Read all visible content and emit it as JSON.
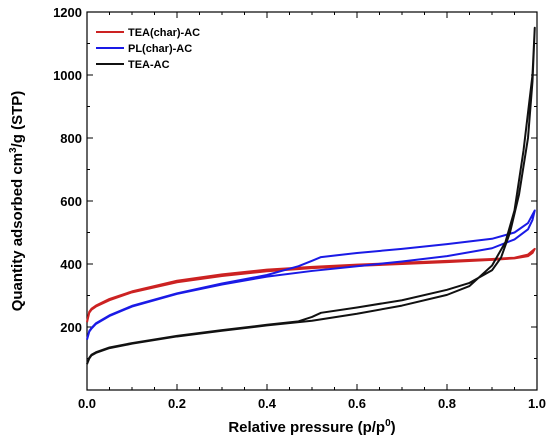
{
  "chart_data": {
    "type": "line",
    "xlabel": "Relative pressure (p/p",
    "xlabel_sup": "0",
    "xlabel_end": ")",
    "ylabel": "Quantity adsorbed cm",
    "ylabel_sup": "3",
    "ylabel_end": "/g (STP)",
    "xlim": [
      0.0,
      1.0
    ],
    "ylim": [
      0,
      1200
    ],
    "xticks": [
      "0.0",
      "0.2",
      "0.4",
      "0.6",
      "0.8",
      "1.0"
    ],
    "yticks": [
      "200",
      "400",
      "600",
      "800",
      "1000",
      "1200"
    ],
    "legend_position": "top-left",
    "series": [
      {
        "name": "TEA(char)-AC",
        "color": "#cc2222",
        "loop": true,
        "adsorption": [
          [
            0.0,
            215
          ],
          [
            0.005,
            245
          ],
          [
            0.01,
            255
          ],
          [
            0.02,
            265
          ],
          [
            0.05,
            285
          ],
          [
            0.1,
            310
          ],
          [
            0.2,
            342
          ],
          [
            0.3,
            362
          ],
          [
            0.4,
            377
          ],
          [
            0.5,
            387
          ],
          [
            0.6,
            394
          ],
          [
            0.7,
            400
          ],
          [
            0.8,
            406
          ],
          [
            0.9,
            413
          ],
          [
            0.95,
            418
          ],
          [
            0.98,
            425
          ],
          [
            0.99,
            435
          ],
          [
            0.995,
            448
          ]
        ],
        "desorption": [
          [
            0.995,
            448
          ],
          [
            0.98,
            430
          ],
          [
            0.95,
            420
          ],
          [
            0.9,
            416
          ],
          [
            0.8,
            410
          ],
          [
            0.7,
            404
          ],
          [
            0.6,
            398
          ],
          [
            0.5,
            391
          ],
          [
            0.4,
            382
          ],
          [
            0.3,
            367
          ],
          [
            0.2,
            347
          ],
          [
            0.1,
            313
          ],
          [
            0.05,
            289
          ],
          [
            0.02,
            268
          ],
          [
            0.01,
            258
          ],
          [
            0.005,
            248
          ],
          [
            0.0,
            215
          ]
        ]
      },
      {
        "name": "PL(char)-AC",
        "color": "#1a1ae6",
        "loop": true,
        "adsorption": [
          [
            0.0,
            160
          ],
          [
            0.005,
            185
          ],
          [
            0.01,
            195
          ],
          [
            0.02,
            210
          ],
          [
            0.05,
            235
          ],
          [
            0.1,
            265
          ],
          [
            0.2,
            305
          ],
          [
            0.3,
            335
          ],
          [
            0.4,
            360
          ],
          [
            0.5,
            378
          ],
          [
            0.6,
            393
          ],
          [
            0.7,
            408
          ],
          [
            0.8,
            425
          ],
          [
            0.9,
            450
          ],
          [
            0.95,
            478
          ],
          [
            0.98,
            510
          ],
          [
            0.99,
            540
          ],
          [
            0.995,
            570
          ]
        ],
        "desorption": [
          [
            0.995,
            570
          ],
          [
            0.98,
            530
          ],
          [
            0.95,
            500
          ],
          [
            0.9,
            480
          ],
          [
            0.8,
            463
          ],
          [
            0.7,
            448
          ],
          [
            0.6,
            435
          ],
          [
            0.52,
            422
          ],
          [
            0.5,
            410
          ],
          [
            0.47,
            393
          ],
          [
            0.4,
            365
          ],
          [
            0.3,
            338
          ],
          [
            0.2,
            307
          ],
          [
            0.1,
            267
          ],
          [
            0.05,
            237
          ],
          [
            0.02,
            212
          ],
          [
            0.01,
            197
          ],
          [
            0.005,
            187
          ],
          [
            0.0,
            160
          ]
        ]
      },
      {
        "name": "TEA-AC",
        "color": "#111111",
        "loop": true,
        "adsorption": [
          [
            0.0,
            82
          ],
          [
            0.005,
            100
          ],
          [
            0.01,
            110
          ],
          [
            0.02,
            118
          ],
          [
            0.05,
            133
          ],
          [
            0.1,
            147
          ],
          [
            0.2,
            170
          ],
          [
            0.3,
            188
          ],
          [
            0.4,
            205
          ],
          [
            0.5,
            220
          ],
          [
            0.6,
            242
          ],
          [
            0.7,
            268
          ],
          [
            0.8,
            302
          ],
          [
            0.85,
            330
          ],
          [
            0.9,
            395
          ],
          [
            0.93,
            470
          ],
          [
            0.95,
            570
          ],
          [
            0.97,
            760
          ],
          [
            0.98,
            880
          ],
          [
            0.99,
            1000
          ],
          [
            0.995,
            1150
          ]
        ],
        "desorption": [
          [
            0.995,
            1150
          ],
          [
            0.99,
            980
          ],
          [
            0.98,
            800
          ],
          [
            0.96,
            620
          ],
          [
            0.94,
            500
          ],
          [
            0.92,
            420
          ],
          [
            0.9,
            380
          ],
          [
            0.85,
            340
          ],
          [
            0.8,
            318
          ],
          [
            0.7,
            285
          ],
          [
            0.6,
            262
          ],
          [
            0.52,
            245
          ],
          [
            0.5,
            232
          ],
          [
            0.47,
            218
          ],
          [
            0.4,
            207
          ],
          [
            0.3,
            190
          ],
          [
            0.2,
            172
          ],
          [
            0.1,
            149
          ],
          [
            0.05,
            135
          ],
          [
            0.02,
            120
          ],
          [
            0.01,
            112
          ],
          [
            0.005,
            102
          ],
          [
            0.0,
            82
          ]
        ]
      }
    ]
  }
}
